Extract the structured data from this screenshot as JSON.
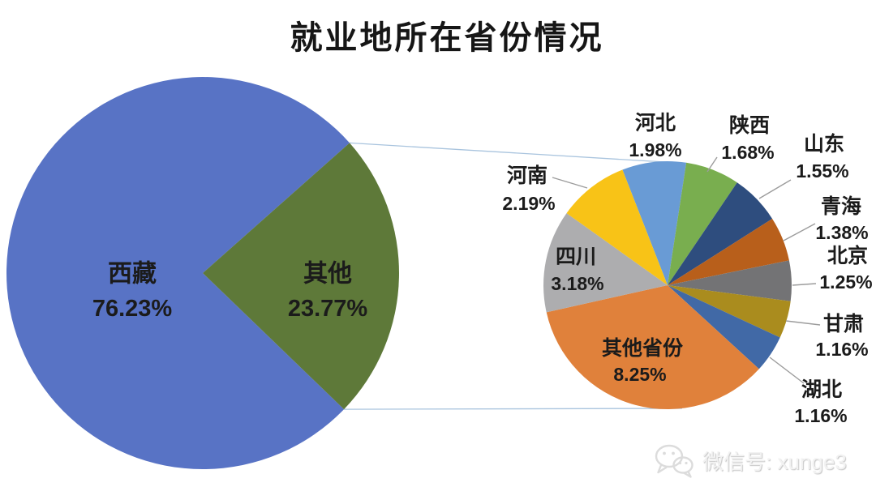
{
  "title": "就业地所在省份情况",
  "watermark": {
    "icon": "wechat-icon",
    "label": "微信号: xunge3"
  },
  "chart_data": {
    "type": "pie",
    "subtype": "pie-of-pie",
    "title": "就业地所在省份情况",
    "unit": "%",
    "legend": "none",
    "main_pie": {
      "start_angle_deg": 134,
      "slices": [
        {
          "key": "xizang",
          "label": "西藏",
          "value": 76.23,
          "display": "76.23%",
          "color": "#5873C5"
        },
        {
          "key": "qita",
          "label": "其他",
          "value": 23.77,
          "display": "23.77%",
          "color": "#5E7939"
        }
      ]
    },
    "secondary_pie": {
      "represents": "其他",
      "total_percent": 23.77,
      "start_angle_deg": -21.3,
      "order": "clockwise-from-top",
      "slices": [
        {
          "key": "hebei",
          "label": "河北",
          "value": 1.98,
          "display": "1.98%",
          "color": "#699BD5"
        },
        {
          "key": "shaanxi",
          "label": "陕西",
          "value": 1.68,
          "display": "1.68%",
          "color": "#79AE4F"
        },
        {
          "key": "shandong",
          "label": "山东",
          "value": 1.55,
          "display": "1.55%",
          "color": "#2E4D7E"
        },
        {
          "key": "qinghai",
          "label": "青海",
          "value": 1.38,
          "display": "1.38%",
          "color": "#B85F1B"
        },
        {
          "key": "beijing",
          "label": "北京",
          "value": 1.25,
          "display": "1.25%",
          "color": "#737375"
        },
        {
          "key": "gansu",
          "label": "甘肃",
          "value": 1.16,
          "display": "1.16%",
          "color": "#AA8C1E"
        },
        {
          "key": "hubei",
          "label": "湖北",
          "value": 1.16,
          "display": "1.16%",
          "color": "#4169A6"
        },
        {
          "key": "qitashengfen",
          "label": "其他省份",
          "value": 8.25,
          "display": "8.25%",
          "color": "#E0813B"
        },
        {
          "key": "sichuan",
          "label": "四川",
          "value": 3.18,
          "display": "3.18%",
          "color": "#ADADAF"
        },
        {
          "key": "henan",
          "label": "河南",
          "value": 2.19,
          "display": "2.19%",
          "color": "#F8C317"
        }
      ]
    }
  }
}
